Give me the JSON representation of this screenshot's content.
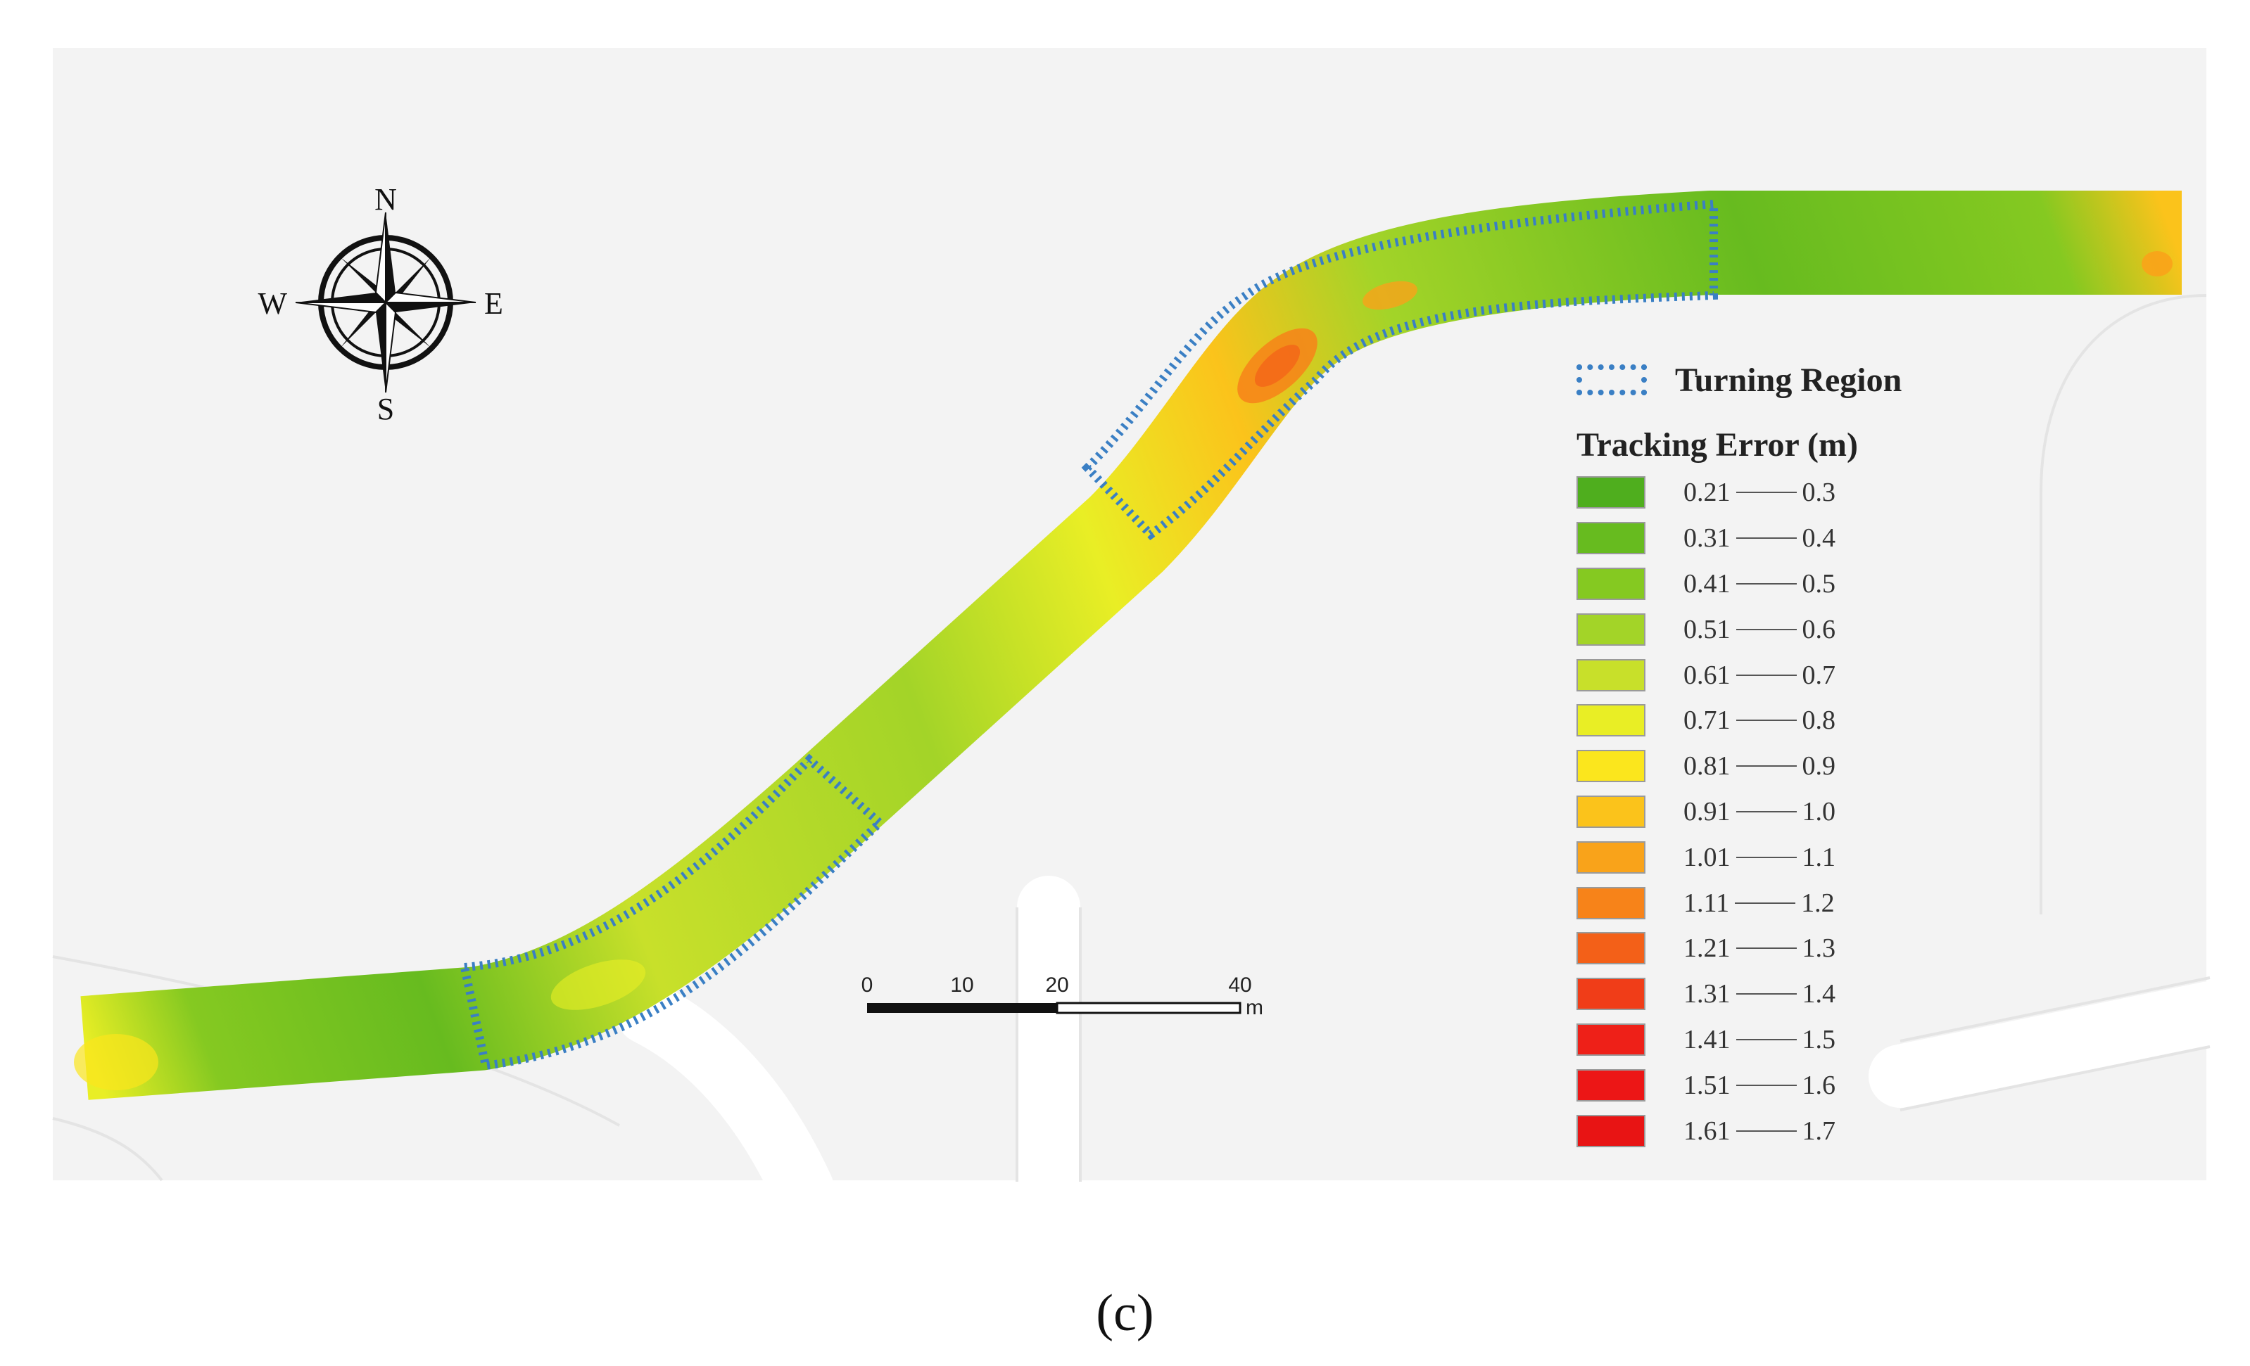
{
  "compass": {
    "north": "N",
    "south": "S",
    "east": "E",
    "west": "W"
  },
  "scale_bar": {
    "ticks": [
      "0",
      "10",
      "20",
      "40"
    ],
    "unit": "m"
  },
  "legend": {
    "turning_region_label": "Turning Region",
    "turning_region_color": "#3a7fc4",
    "title": "Tracking Error (m)",
    "items": [
      {
        "low": "0.21",
        "high": "0.3",
        "color": "#4fae1e"
      },
      {
        "low": "0.31",
        "high": "0.4",
        "color": "#67bb1f"
      },
      {
        "low": "0.41",
        "high": "0.5",
        "color": "#85c921"
      },
      {
        "low": "0.51",
        "high": "0.6",
        "color": "#a3d428"
      },
      {
        "low": "0.61",
        "high": "0.7",
        "color": "#c8e02a"
      },
      {
        "low": "0.71",
        "high": "0.8",
        "color": "#e9ee25"
      },
      {
        "low": "0.81",
        "high": "0.9",
        "color": "#fbe61d"
      },
      {
        "low": "0.91",
        "high": "1.0",
        "color": "#fbc31b"
      },
      {
        "low": "1.01",
        "high": "1.1",
        "color": "#f9a31a"
      },
      {
        "low": "1.11",
        "high": "1.2",
        "color": "#f78319"
      },
      {
        "low": "1.21",
        "high": "1.3",
        "color": "#f36018"
      },
      {
        "low": "1.31",
        "high": "1.4",
        "color": "#f03d18"
      },
      {
        "low": "1.41",
        "high": "1.5",
        "color": "#ee2018"
      },
      {
        "low": "1.51",
        "high": "1.6",
        "color": "#ec1616"
      },
      {
        "low": "1.61",
        "high": "1.7",
        "color": "#e81414"
      }
    ]
  },
  "panel_label": "(c)"
}
